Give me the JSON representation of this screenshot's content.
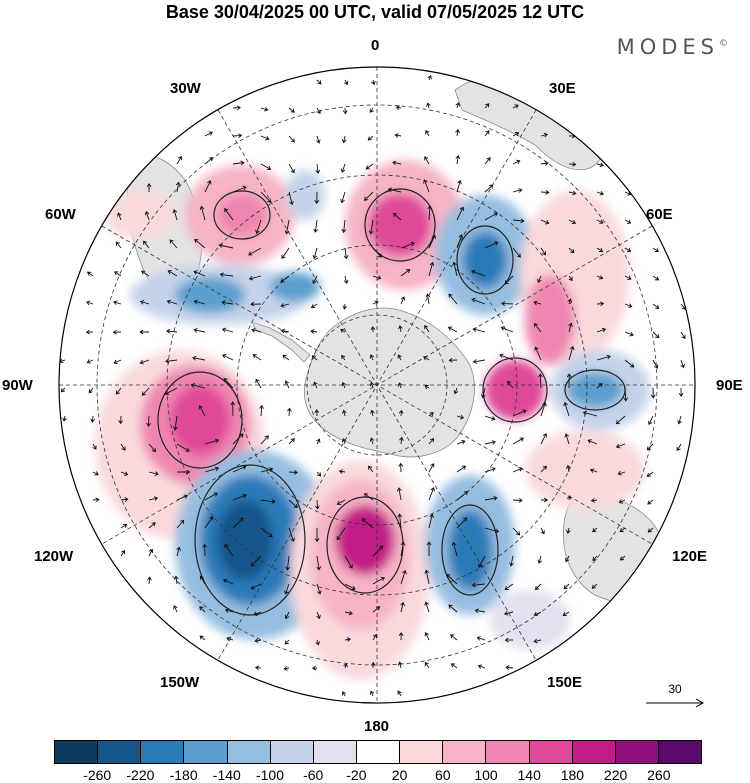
{
  "title": "Base 30/04/2025 00 UTC, valid 07/05/2025 12 UTC",
  "brand": "MODES",
  "brand_mark": "©",
  "longitude_labels": {
    "lon_0": "0",
    "lon_30e": "30E",
    "lon_60e": "60E",
    "lon_90e": "90E",
    "lon_120e": "120E",
    "lon_150e": "150E",
    "lon_180": "180",
    "lon_150w": "150W",
    "lon_120w": "120W",
    "lon_90w": "90W",
    "lon_60w": "60W",
    "lon_30w": "30W"
  },
  "vector_reference": {
    "value": "30"
  },
  "colorbar": {
    "colors": [
      "#0d3a5c",
      "#12558a",
      "#2a7ab8",
      "#5b9fcf",
      "#95bde0",
      "#c4d3ea",
      "#e3e1ef",
      "#ffffff",
      "#f9d9dc",
      "#f6b4c6",
      "#ef86b1",
      "#e0489a",
      "#c21c87",
      "#8e0f7a",
      "#5a0a6b"
    ],
    "tick_labels": [
      "-260",
      "-220",
      "-180",
      "-140",
      "-100",
      "-60",
      "-20",
      "20",
      "60",
      "100",
      "140",
      "180",
      "220",
      "260"
    ]
  }
}
